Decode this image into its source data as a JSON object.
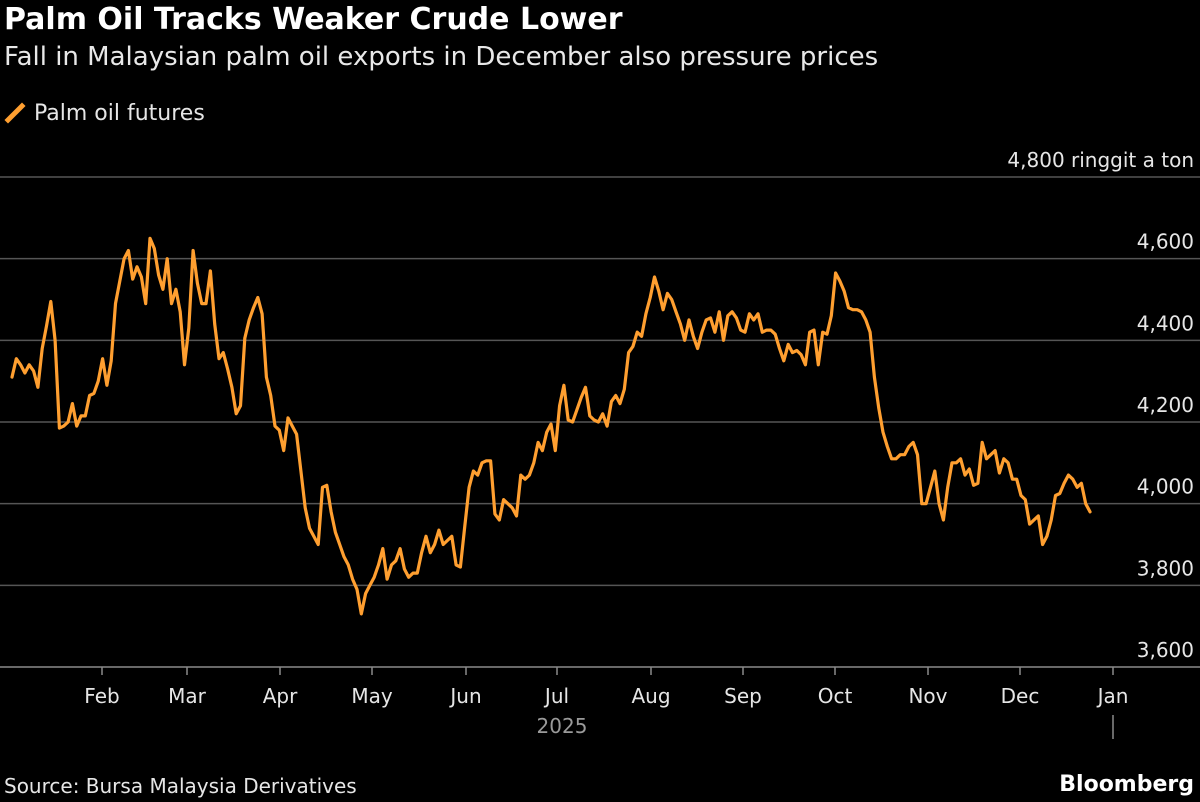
{
  "header": {
    "title": "Palm Oil Tracks Weaker Crude Lower",
    "subtitle": "Fall in Malaysian palm oil exports in December also pressure prices"
  },
  "legend": {
    "label": "Palm oil futures",
    "color": "#ff9f30"
  },
  "footer": {
    "source": "Source: Bursa Malaysia Derivatives",
    "brand": "Bloomberg"
  },
  "chart_data": {
    "type": "line",
    "title": "Palm Oil Tracks Weaker Crude Lower",
    "subtitle": "Fall in Malaysian palm oil exports in December also pressure prices",
    "ylabel": "ringgit a ton",
    "ylim": [
      3600,
      4800
    ],
    "y_ticks": [
      3600,
      3800,
      4000,
      4200,
      4400,
      4600,
      4800
    ],
    "y_tick_labels": [
      "3,600",
      "3,800",
      "4,000",
      "4,200",
      "4,400",
      "4,600",
      "4,800 ringgit a ton"
    ],
    "x_ticks": [
      "Feb",
      "Mar",
      "Apr",
      "May",
      "Jun",
      "Jul",
      "Aug",
      "Sep",
      "Oct",
      "Nov",
      "Dec",
      "Jan"
    ],
    "x_year_label": "2025",
    "grid": true,
    "series": [
      {
        "name": "Palm oil futures",
        "color": "#ff9f30",
        "points": [
          [
            0,
            4310
          ],
          [
            1,
            4355
          ],
          [
            2,
            4340
          ],
          [
            3,
            4320
          ],
          [
            4,
            4340
          ],
          [
            5,
            4325
          ],
          [
            6,
            4285
          ],
          [
            7,
            4380
          ],
          [
            8,
            4435
          ],
          [
            9,
            4495
          ],
          [
            10,
            4400
          ],
          [
            11,
            4185
          ],
          [
            12,
            4190
          ],
          [
            13,
            4200
          ],
          [
            14,
            4245
          ],
          [
            15,
            4190
          ],
          [
            16,
            4215
          ],
          [
            17,
            4215
          ],
          [
            18,
            4265
          ],
          [
            19,
            4270
          ],
          [
            20,
            4300
          ],
          [
            21,
            4355
          ],
          [
            22,
            4290
          ],
          [
            23,
            4350
          ],
          [
            24,
            4490
          ],
          [
            25,
            4545
          ],
          [
            26,
            4600
          ],
          [
            27,
            4620
          ],
          [
            28,
            4550
          ],
          [
            29,
            4580
          ],
          [
            30,
            4555
          ],
          [
            31,
            4490
          ],
          [
            32,
            4650
          ],
          [
            33,
            4625
          ],
          [
            34,
            4560
          ],
          [
            35,
            4525
          ],
          [
            36,
            4600
          ],
          [
            37,
            4490
          ],
          [
            38,
            4525
          ],
          [
            39,
            4470
          ],
          [
            40,
            4340
          ],
          [
            41,
            4430
          ],
          [
            42,
            4620
          ],
          [
            43,
            4540
          ],
          [
            44,
            4490
          ],
          [
            45,
            4490
          ],
          [
            46,
            4570
          ],
          [
            47,
            4440
          ],
          [
            48,
            4355
          ],
          [
            49,
            4370
          ],
          [
            50,
            4330
          ],
          [
            51,
            4285
          ],
          [
            52,
            4220
          ],
          [
            53,
            4240
          ],
          [
            54,
            4405
          ],
          [
            55,
            4450
          ],
          [
            56,
            4480
          ],
          [
            57,
            4505
          ],
          [
            58,
            4465
          ],
          [
            59,
            4310
          ],
          [
            60,
            4265
          ],
          [
            61,
            4190
          ],
          [
            62,
            4180
          ],
          [
            63,
            4130
          ],
          [
            64,
            4210
          ],
          [
            65,
            4190
          ],
          [
            66,
            4170
          ],
          [
            67,
            4080
          ],
          [
            68,
            3990
          ],
          [
            69,
            3940
          ],
          [
            70,
            3920
          ],
          [
            71,
            3900
          ],
          [
            72,
            4040
          ],
          [
            73,
            4045
          ],
          [
            74,
            3980
          ],
          [
            75,
            3930
          ],
          [
            76,
            3900
          ],
          [
            77,
            3870
          ],
          [
            78,
            3850
          ],
          [
            79,
            3815
          ],
          [
            80,
            3790
          ],
          [
            81,
            3730
          ],
          [
            82,
            3780
          ],
          [
            83,
            3800
          ],
          [
            84,
            3820
          ],
          [
            85,
            3850
          ],
          [
            86,
            3890
          ],
          [
            87,
            3815
          ],
          [
            88,
            3850
          ],
          [
            89,
            3860
          ],
          [
            90,
            3890
          ],
          [
            91,
            3840
          ],
          [
            92,
            3820
          ],
          [
            93,
            3830
          ],
          [
            94,
            3830
          ],
          [
            95,
            3880
          ],
          [
            96,
            3920
          ],
          [
            97,
            3880
          ],
          [
            98,
            3900
          ],
          [
            99,
            3935
          ],
          [
            100,
            3900
          ],
          [
            101,
            3910
          ],
          [
            102,
            3920
          ],
          [
            103,
            3850
          ],
          [
            104,
            3845
          ],
          [
            105,
            3945
          ],
          [
            106,
            4040
          ],
          [
            107,
            4080
          ],
          [
            108,
            4070
          ],
          [
            109,
            4100
          ],
          [
            110,
            4105
          ],
          [
            111,
            4105
          ],
          [
            112,
            3975
          ],
          [
            113,
            3960
          ],
          [
            114,
            4010
          ],
          [
            115,
            4000
          ],
          [
            116,
            3990
          ],
          [
            117,
            3970
          ],
          [
            118,
            4070
          ],
          [
            119,
            4060
          ],
          [
            120,
            4070
          ],
          [
            121,
            4100
          ],
          [
            122,
            4150
          ],
          [
            123,
            4130
          ],
          [
            124,
            4175
          ],
          [
            125,
            4195
          ],
          [
            126,
            4130
          ],
          [
            127,
            4240
          ],
          [
            128,
            4290
          ],
          [
            129,
            4205
          ],
          [
            130,
            4200
          ],
          [
            131,
            4230
          ],
          [
            132,
            4260
          ],
          [
            133,
            4285
          ],
          [
            134,
            4215
          ],
          [
            135,
            4205
          ],
          [
            136,
            4200
          ],
          [
            137,
            4220
          ],
          [
            138,
            4190
          ],
          [
            139,
            4250
          ],
          [
            140,
            4265
          ],
          [
            141,
            4245
          ],
          [
            142,
            4280
          ],
          [
            143,
            4370
          ],
          [
            144,
            4385
          ],
          [
            145,
            4420
          ],
          [
            146,
            4410
          ],
          [
            147,
            4465
          ],
          [
            148,
            4505
          ],
          [
            149,
            4555
          ],
          [
            150,
            4520
          ],
          [
            151,
            4475
          ],
          [
            152,
            4515
          ],
          [
            153,
            4500
          ],
          [
            154,
            4470
          ],
          [
            155,
            4440
          ],
          [
            156,
            4400
          ],
          [
            157,
            4450
          ],
          [
            158,
            4410
          ],
          [
            159,
            4380
          ],
          [
            160,
            4420
          ],
          [
            161,
            4450
          ],
          [
            162,
            4455
          ],
          [
            163,
            4420
          ],
          [
            164,
            4470
          ],
          [
            165,
            4400
          ],
          [
            166,
            4460
          ],
          [
            167,
            4470
          ],
          [
            168,
            4455
          ],
          [
            169,
            4425
          ],
          [
            170,
            4420
          ],
          [
            171,
            4465
          ],
          [
            172,
            4450
          ],
          [
            173,
            4465
          ],
          [
            174,
            4420
          ],
          [
            175,
            4425
          ],
          [
            176,
            4425
          ],
          [
            177,
            4415
          ],
          [
            178,
            4380
          ],
          [
            179,
            4350
          ],
          [
            180,
            4390
          ],
          [
            181,
            4370
          ],
          [
            182,
            4375
          ],
          [
            183,
            4365
          ],
          [
            184,
            4340
          ],
          [
            185,
            4420
          ],
          [
            186,
            4425
          ],
          [
            187,
            4340
          ],
          [
            188,
            4420
          ],
          [
            189,
            4415
          ],
          [
            190,
            4460
          ],
          [
            191,
            4565
          ],
          [
            192,
            4545
          ],
          [
            193,
            4520
          ],
          [
            194,
            4480
          ],
          [
            195,
            4475
          ],
          [
            196,
            4475
          ],
          [
            197,
            4470
          ],
          [
            198,
            4450
          ],
          [
            199,
            4420
          ],
          [
            200,
            4310
          ],
          [
            201,
            4235
          ],
          [
            202,
            4175
          ],
          [
            203,
            4140
          ],
          [
            204,
            4110
          ],
          [
            205,
            4110
          ],
          [
            206,
            4120
          ],
          [
            207,
            4120
          ],
          [
            208,
            4140
          ],
          [
            209,
            4150
          ],
          [
            210,
            4120
          ],
          [
            211,
            4000
          ],
          [
            212,
            4000
          ],
          [
            213,
            4040
          ],
          [
            214,
            4080
          ],
          [
            215,
            4000
          ],
          [
            216,
            3960
          ],
          [
            217,
            4040
          ],
          [
            218,
            4100
          ],
          [
            219,
            4100
          ],
          [
            220,
            4110
          ],
          [
            221,
            4070
          ],
          [
            222,
            4085
          ],
          [
            223,
            4045
          ],
          [
            224,
            4050
          ],
          [
            225,
            4150
          ],
          [
            226,
            4110
          ],
          [
            227,
            4120
          ],
          [
            228,
            4130
          ],
          [
            229,
            4075
          ],
          [
            230,
            4110
          ],
          [
            231,
            4100
          ],
          [
            232,
            4060
          ],
          [
            233,
            4060
          ],
          [
            234,
            4020
          ],
          [
            235,
            4010
          ],
          [
            236,
            3950
          ],
          [
            237,
            3960
          ],
          [
            238,
            3970
          ],
          [
            239,
            3900
          ],
          [
            240,
            3920
          ],
          [
            241,
            3960
          ],
          [
            242,
            4020
          ],
          [
            243,
            4025
          ],
          [
            244,
            4050
          ],
          [
            245,
            4070
          ],
          [
            246,
            4060
          ],
          [
            247,
            4040
          ],
          [
            248,
            4050
          ],
          [
            249,
            4000
          ],
          [
            250,
            3980
          ]
        ]
      }
    ]
  }
}
